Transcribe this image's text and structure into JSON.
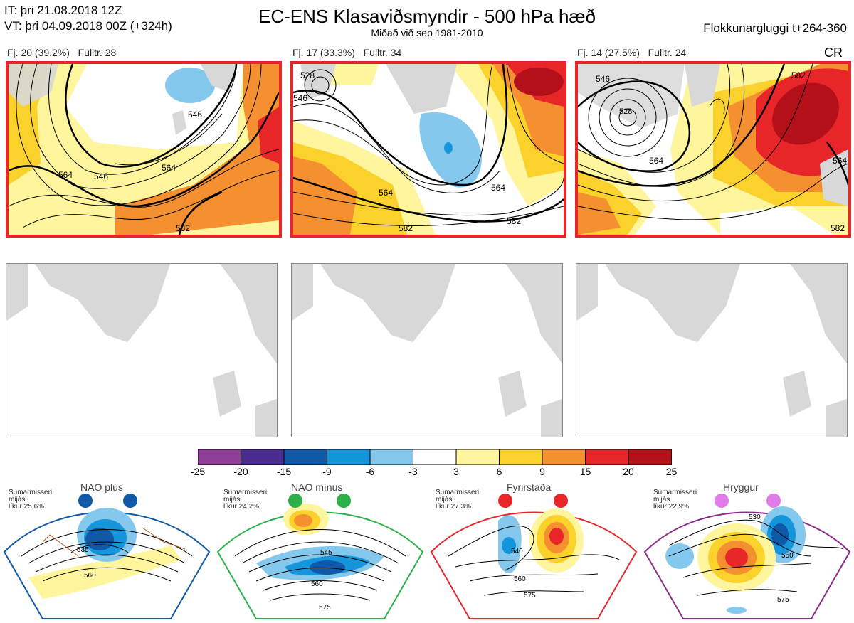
{
  "header": {
    "it_line": "IT: þri 21.08.2018 12Z",
    "vt_line": "VT: þri 04.09.2018 00Z  (+324h)",
    "title": "EC-ENS Klasaviðsmyndir - 500 hPa hæð",
    "subtitle": "Miðað við sep 1981-2010",
    "window": "Flokkunargluggi t+264-360"
  },
  "clusters": [
    {
      "label": "Fj. 20 (39.2%)",
      "full": "Fulltr. 28",
      "contours": [
        "546",
        "564",
        "546",
        "564",
        "582"
      ]
    },
    {
      "label": "Fj. 17 (33.3%)",
      "full": "Fulltr. 34",
      "contours": [
        "528",
        "546",
        "564",
        "564",
        "582",
        "582"
      ]
    },
    {
      "label": "Fj. 14 (27.5%)",
      "full": "Fulltr. 24",
      "contours": [
        "546",
        "528",
        "564",
        "582",
        "564",
        "582"
      ]
    }
  ],
  "cr_label": "CR",
  "colorbar": {
    "ticks": [
      "-25",
      "-20",
      "-15",
      "-9",
      "-6",
      "-3",
      "3",
      "6",
      "9",
      "15",
      "20",
      "25"
    ],
    "colors": [
      "#8e3f97",
      "#4a2b8f",
      "#0f59a8",
      "#1596dc",
      "#84c8ee",
      "#ffffff",
      "#fff59c",
      "#fbd12b",
      "#f4902f",
      "#e8262a",
      "#b3101a"
    ]
  },
  "regimes": [
    {
      "title": "NAO plús",
      "note": [
        "Sumarmisseri",
        "mijás",
        "líkur 25,6%"
      ],
      "color": "#0f59a8",
      "contours": [
        "535",
        "560"
      ]
    },
    {
      "title": "NAO mínus",
      "note": [
        "Sumarmisseri",
        "mijás",
        "líkur 24,2%"
      ],
      "color": "#2db04a",
      "contours": [
        "545",
        "560",
        "575"
      ]
    },
    {
      "title": "Fyrirstaða",
      "note": [
        "Sumarmisseri",
        "mijás",
        "líkur 27,3%"
      ],
      "color": "#e8262a",
      "contours": [
        "540",
        "560",
        "575"
      ]
    },
    {
      "title": "Hryggur",
      "note": [
        "Sumarmisseri",
        "mijás",
        "líkur 22,9%"
      ],
      "color": "#e07ce8",
      "contours": [
        "530",
        "550",
        "575"
      ]
    }
  ]
}
